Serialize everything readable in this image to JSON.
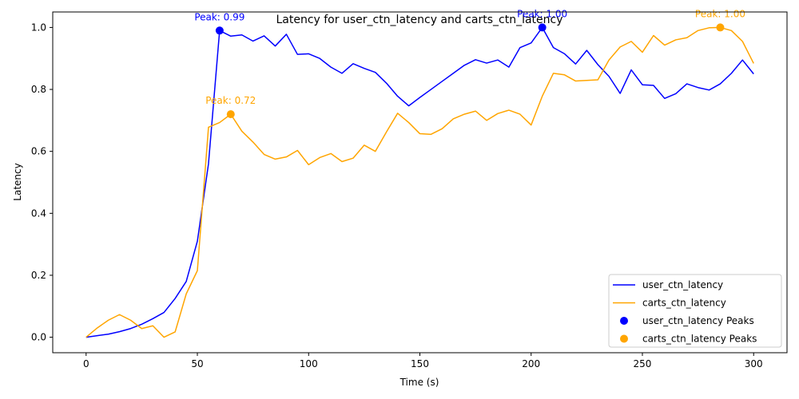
{
  "chart_data": {
    "type": "line",
    "title": "Latency for user_ctn_latency and carts_ctn_latency",
    "xlabel": "Time (s)",
    "ylabel": "Latency",
    "xlim": [
      -15,
      315
    ],
    "ylim": [
      -0.05,
      1.05
    ],
    "xticks": [
      0,
      50,
      100,
      150,
      200,
      250,
      300
    ],
    "yticks": [
      0.0,
      0.2,
      0.4,
      0.6,
      0.8,
      1.0
    ],
    "xtick_labels": [
      "0",
      "50",
      "100",
      "150",
      "200",
      "250",
      "300"
    ],
    "ytick_labels": [
      "0.0",
      "0.2",
      "0.4",
      "0.6",
      "0.8",
      "1.0"
    ],
    "grid": false,
    "legend_position": "lower-right",
    "x": [
      0,
      5,
      10,
      15,
      20,
      25,
      30,
      35,
      40,
      45,
      50,
      55,
      60,
      65,
      70,
      75,
      80,
      85,
      90,
      95,
      100,
      105,
      110,
      115,
      120,
      125,
      130,
      135,
      140,
      145,
      150,
      155,
      160,
      165,
      170,
      175,
      180,
      185,
      190,
      195,
      200,
      205,
      210,
      215,
      220,
      225,
      230,
      235,
      240,
      245,
      250,
      255,
      260,
      265,
      270,
      275,
      280,
      285,
      290,
      295,
      300
    ],
    "series": [
      {
        "name": "user_ctn_latency",
        "color": "#0000ff",
        "values": [
          0.0,
          0.005,
          0.01,
          0.018,
          0.028,
          0.042,
          0.06,
          0.08,
          0.125,
          0.18,
          0.31,
          0.56,
          0.99,
          0.972,
          0.976,
          0.956,
          0.973,
          0.94,
          0.978,
          0.913,
          0.915,
          0.9,
          0.872,
          0.852,
          0.883,
          0.868,
          0.855,
          0.82,
          0.778,
          0.747,
          0.774,
          0.8,
          0.826,
          0.852,
          0.878,
          0.896,
          0.885,
          0.895,
          0.872,
          0.935,
          0.95,
          1.0,
          0.935,
          0.915,
          0.882,
          0.926,
          0.88,
          0.842,
          0.787,
          0.863,
          0.815,
          0.813,
          0.771,
          0.786,
          0.818,
          0.806,
          0.798,
          0.818,
          0.852,
          0.895,
          0.85
        ]
      },
      {
        "name": "carts_ctn_latency",
        "color": "#ffa500",
        "values": [
          0.0,
          0.03,
          0.055,
          0.073,
          0.055,
          0.028,
          0.037,
          0.0,
          0.017,
          0.14,
          0.215,
          0.678,
          0.693,
          0.72,
          0.665,
          0.63,
          0.59,
          0.575,
          0.582,
          0.603,
          0.557,
          0.58,
          0.593,
          0.567,
          0.578,
          0.62,
          0.6,
          0.663,
          0.723,
          0.693,
          0.657,
          0.655,
          0.673,
          0.705,
          0.72,
          0.73,
          0.7,
          0.722,
          0.733,
          0.72,
          0.685,
          0.778,
          0.852,
          0.847,
          0.827,
          0.829,
          0.831,
          0.895,
          0.937,
          0.955,
          0.92,
          0.974,
          0.943,
          0.96,
          0.967,
          0.99,
          0.999,
          1.0,
          0.99,
          0.955,
          0.884
        ]
      }
    ],
    "peaks": [
      {
        "name": "user_ctn_latency Peaks",
        "color": "#0000ff",
        "x": 60,
        "y": 0.99,
        "label": "Peak: 0.99"
      },
      {
        "name": "user_ctn_latency Peaks",
        "color": "#0000ff",
        "x": 205,
        "y": 1.0,
        "label": "Peak: 1.00"
      },
      {
        "name": "carts_ctn_latency Peaks",
        "color": "#ffa500",
        "x": 65,
        "y": 0.72,
        "label": "Peak: 0.72"
      },
      {
        "name": "carts_ctn_latency Peaks",
        "color": "#ffa500",
        "x": 285,
        "y": 1.0,
        "label": "Peak: 1.00"
      }
    ],
    "legend": [
      {
        "label": "user_ctn_latency",
        "kind": "line",
        "color": "#0000ff"
      },
      {
        "label": "carts_ctn_latency",
        "kind": "line",
        "color": "#ffa500"
      },
      {
        "label": "user_ctn_latency Peaks",
        "kind": "marker",
        "color": "#0000ff"
      },
      {
        "label": "carts_ctn_latency Peaks",
        "kind": "marker",
        "color": "#ffa500"
      }
    ]
  }
}
